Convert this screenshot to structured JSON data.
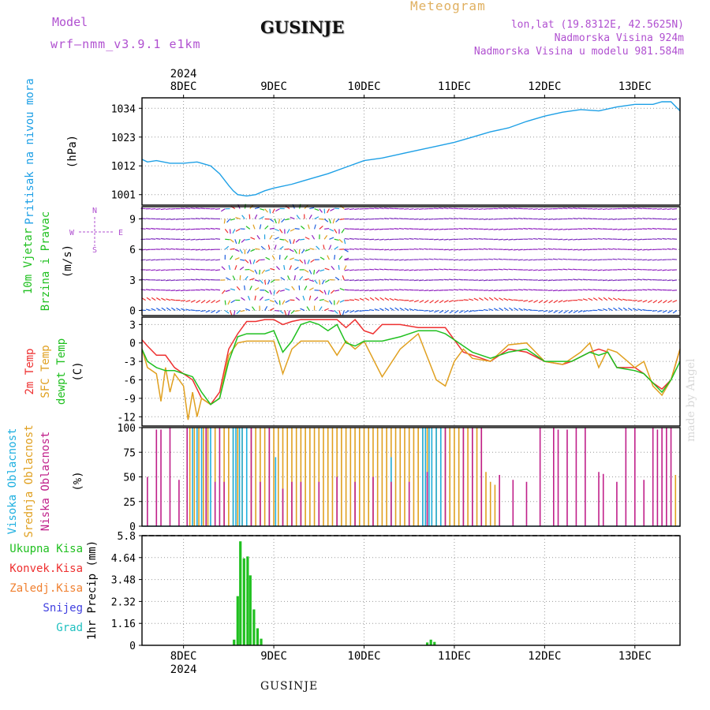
{
  "header": {
    "model_label": "Model",
    "model_name": "wrf—nmm_v3.9.1 e1km",
    "title": "GUSINJE",
    "meteogram": "Meteogram",
    "lonlat": "lon,lat (19.8312E, 42.5625N)",
    "elevation": "Nadmorska Visina 924m",
    "model_elevation": "Nadmorska Visina u modelu 981.584m"
  },
  "footer": {
    "location": "GUSINJE",
    "watermark": "made by Angel"
  },
  "colors": {
    "pressure": "#1ea0e6",
    "temp2m": "#ee3030",
    "sfc": "#e0a020",
    "dewpt": "#20c020",
    "high_cloud": "#20b0e0",
    "mid_cloud": "#e0a020",
    "low_cloud": "#c0208a",
    "total_precip": "#20c020",
    "conv_precip": "#ee3030",
    "freezing": "#f08030",
    "snow": "#4040e0",
    "hail": "#20c0c0"
  },
  "chart_data": [
    {
      "type": "line",
      "panel": "pressure",
      "ylabel_lines": [
        "Pritisak na nivou mora",
        "(hPa)"
      ],
      "yticks": [
        1001,
        1012,
        1023,
        1034
      ],
      "ylim": [
        997,
        1038
      ],
      "xlim": [
        7.54,
        13.5
      ],
      "day_ticks": [
        "8DEC",
        "9DEC",
        "10DEC",
        "11DEC",
        "12DEC",
        "13DEC"
      ],
      "day_tick_x": [
        8,
        9,
        10,
        11,
        12,
        13
      ],
      "year_label": "2024",
      "series": [
        {
          "x": [
            7.54,
            7.6,
            7.7,
            7.85,
            8.0,
            8.15,
            8.3,
            8.4,
            8.5,
            8.55,
            8.6,
            8.7,
            8.8,
            8.9,
            9.0,
            9.2,
            9.4,
            9.6,
            9.8,
            10.0,
            10.2,
            10.4,
            10.6,
            10.8,
            11.0,
            11.2,
            11.4,
            11.6,
            11.8,
            12.0,
            12.2,
            12.4,
            12.6,
            12.8,
            13.0,
            13.2,
            13.3,
            13.4,
            13.5
          ],
          "y": [
            1014.5,
            1013.5,
            1014,
            1013,
            1013,
            1013.5,
            1012,
            1009,
            1004.5,
            1002.5,
            1001,
            1000.5,
            1001,
            1002.5,
            1003.5,
            1005,
            1007,
            1009,
            1011.5,
            1014,
            1015,
            1016.5,
            1018,
            1019.5,
            1021,
            1023,
            1025,
            1026.5,
            1029,
            1031,
            1032.5,
            1033.5,
            1033,
            1034.5,
            1035.5,
            1035.5,
            1036.5,
            1036.5,
            1033
          ]
        }
      ]
    },
    {
      "type": "scatter",
      "panel": "wind",
      "ylabel_lines": [
        "10m Vjetar",
        "Brzina i Pravac",
        "(m/s)"
      ],
      "compass": {
        "n": "N",
        "s": "S",
        "w": "W",
        "e": "E"
      },
      "yticks": [
        0,
        3,
        6,
        9
      ],
      "ylim": [
        -0.5,
        10.2
      ],
      "note": "wind barbs at 0-10 m/s levels; strong mixed directions 8.5-9.8 DEC"
    },
    {
      "type": "line",
      "panel": "temperature",
      "ylabel_lines": [
        "2m Temp",
        "SFC Temp",
        "dewpt Temp",
        "(C)"
      ],
      "yticks": [
        3,
        0,
        -3,
        -6,
        -9,
        -12
      ],
      "ylim": [
        -13.5,
        4.2
      ],
      "series": [
        {
          "name": "2m Temp",
          "x": [
            7.54,
            7.6,
            7.7,
            7.8,
            7.9,
            8.0,
            8.1,
            8.2,
            8.3,
            8.4,
            8.5,
            8.6,
            8.7,
            8.8,
            8.9,
            9.0,
            9.1,
            9.2,
            9.3,
            9.4,
            9.5,
            9.6,
            9.7,
            9.8,
            9.9,
            10.0,
            10.1,
            10.2,
            10.4,
            10.6,
            10.8,
            10.9,
            11.0,
            11.1,
            11.2,
            11.4,
            11.6,
            11.8,
            12.0,
            12.2,
            12.3,
            12.5,
            12.6,
            12.7,
            12.8,
            13.0,
            13.1,
            13.2,
            13.3,
            13.4,
            13.5
          ],
          "y": [
            0.5,
            -0.5,
            -2,
            -2,
            -4,
            -5,
            -6,
            -9,
            -10,
            -8,
            -1,
            1.5,
            3.5,
            3.5,
            3.8,
            3.8,
            3,
            3.5,
            3.8,
            3.8,
            3.8,
            3.8,
            3.8,
            2.5,
            3.8,
            2,
            1.5,
            3,
            3,
            2.5,
            2.5,
            2.5,
            0.5,
            -1.5,
            -2,
            -3,
            -1,
            -1.5,
            -3,
            -3.5,
            -3,
            -1.5,
            -1,
            -1.5,
            -4,
            -4,
            -5,
            -6.5,
            -7.5,
            -6,
            -1
          ]
        },
        {
          "name": "SFC Temp",
          "x": [
            7.54,
            7.6,
            7.7,
            7.75,
            7.8,
            7.85,
            7.9,
            8.0,
            8.05,
            8.1,
            8.15,
            8.2,
            8.3,
            8.4,
            8.5,
            8.6,
            8.7,
            8.8,
            8.9,
            9.0,
            9.1,
            9.2,
            9.3,
            9.4,
            9.5,
            9.6,
            9.7,
            9.8,
            9.9,
            10.0,
            10.2,
            10.4,
            10.6,
            10.8,
            10.9,
            11.0,
            11.1,
            11.2,
            11.4,
            11.6,
            11.8,
            12.0,
            12.2,
            12.4,
            12.5,
            12.6,
            12.7,
            12.8,
            13.0,
            13.1,
            13.2,
            13.3,
            13.4,
            13.5
          ],
          "y": [
            -1,
            -4,
            -5,
            -9.5,
            -4,
            -8,
            -5,
            -7,
            -12.5,
            -8,
            -12,
            -9,
            -10,
            -9,
            -2,
            0,
            0.3,
            0.3,
            0.3,
            0.3,
            -5,
            -1,
            0.3,
            0.3,
            0.3,
            0.3,
            -2,
            0.3,
            -1,
            0.3,
            -5.5,
            -1,
            1.5,
            -6,
            -7,
            -3,
            -1,
            -2.5,
            -3,
            -0.3,
            0,
            -3,
            -3.5,
            -1.5,
            0,
            -4,
            -1,
            -1.5,
            -4,
            -3,
            -7,
            -8.5,
            -6,
            -1
          ]
        },
        {
          "name": "dewpt Temp",
          "x": [
            7.54,
            7.6,
            7.7,
            7.8,
            7.9,
            8.0,
            8.1,
            8.2,
            8.3,
            8.4,
            8.5,
            8.6,
            8.7,
            8.8,
            8.9,
            9.0,
            9.1,
            9.2,
            9.3,
            9.4,
            9.5,
            9.6,
            9.7,
            9.8,
            9.9,
            10.0,
            10.2,
            10.4,
            10.6,
            10.8,
            10.9,
            11.0,
            11.1,
            11.2,
            11.4,
            11.6,
            11.8,
            12.0,
            12.2,
            12.3,
            12.5,
            12.6,
            12.7,
            12.8,
            13.0,
            13.1,
            13.2,
            13.3,
            13.4,
            13.5
          ],
          "y": [
            -1,
            -3,
            -4,
            -4.5,
            -4.5,
            -5,
            -5.5,
            -8,
            -10,
            -9,
            -3,
            1,
            1.5,
            1.5,
            1.5,
            2,
            -1.5,
            0.3,
            3,
            3.5,
            3,
            2,
            3,
            0,
            -0.5,
            0.3,
            0.3,
            1,
            2,
            2,
            1.5,
            0.5,
            -0.5,
            -1.5,
            -2.5,
            -1.5,
            -1,
            -3,
            -3,
            -3,
            -1.5,
            -2,
            -1.5,
            -4,
            -4.5,
            -5,
            -6.5,
            -8,
            -6,
            -3
          ]
        }
      ]
    },
    {
      "type": "bar",
      "panel": "clouds",
      "ylabel_lines": [
        "Visoka Oblacnost",
        "Srednja Oblacnost",
        "Niska Oblacnost",
        "(%)"
      ],
      "yticks": [
        0,
        25,
        50,
        75,
        100
      ],
      "ylim": [
        0,
        100
      ],
      "series": [
        {
          "name": "Visoka Oblacnost",
          "x": [
            8.1,
            8.15,
            8.2,
            8.25,
            8.3,
            8.55,
            8.58,
            8.62,
            8.65,
            8.7,
            9.02,
            10.3,
            10.65,
            10.68,
            10.72,
            10.75,
            10.8,
            10.85
          ],
          "values": [
            100,
            100,
            100,
            100,
            100,
            100,
            100,
            100,
            100,
            100,
            70,
            70,
            100,
            100,
            100,
            100,
            100,
            100
          ]
        },
        {
          "name": "Srednja Oblacnost",
          "x": [
            8.07,
            8.12,
            8.17,
            8.22,
            8.27,
            8.35,
            8.45,
            8.5,
            8.55,
            8.6,
            8.65,
            8.75,
            8.8,
            8.85,
            8.9,
            8.95,
            9.0,
            9.05,
            9.1,
            9.15,
            9.2,
            9.25,
            9.3,
            9.35,
            9.4,
            9.45,
            9.5,
            9.55,
            9.6,
            9.65,
            9.7,
            9.75,
            9.8,
            9.85,
            9.9,
            9.95,
            10.0,
            10.05,
            10.1,
            10.15,
            10.2,
            10.25,
            10.3,
            10.35,
            10.4,
            10.45,
            10.5,
            10.55,
            10.6,
            10.65,
            10.7,
            10.75,
            10.8,
            10.85,
            10.9,
            10.95,
            11.0,
            11.05,
            11.1,
            11.15,
            11.2,
            11.25,
            11.3,
            11.35,
            11.4,
            11.45,
            13.45
          ],
          "values": [
            100,
            100,
            100,
            100,
            100,
            100,
            100,
            100,
            100,
            100,
            100,
            100,
            100,
            100,
            100,
            100,
            100,
            100,
            100,
            100,
            100,
            100,
            100,
            100,
            100,
            100,
            100,
            100,
            100,
            100,
            100,
            100,
            100,
            100,
            100,
            100,
            100,
            100,
            100,
            100,
            100,
            100,
            100,
            100,
            100,
            100,
            100,
            100,
            100,
            100,
            100,
            100,
            100,
            100,
            100,
            100,
            100,
            100,
            100,
            100,
            100,
            100,
            100,
            55,
            45,
            42,
            52
          ]
        },
        {
          "name": "Niska Oblacnost",
          "x": [
            7.6,
            7.7,
            7.75,
            7.85,
            7.95,
            8.04,
            8.25,
            8.35,
            8.4,
            8.45,
            8.75,
            8.85,
            8.95,
            9.1,
            9.2,
            9.3,
            9.5,
            9.7,
            9.9,
            10.1,
            10.3,
            10.5,
            10.7,
            10.9,
            11.1,
            11.2,
            11.3,
            11.5,
            11.65,
            11.8,
            11.95,
            12.1,
            12.15,
            12.25,
            12.35,
            12.45,
            12.6,
            12.65,
            12.8,
            12.9,
            13.0,
            13.1,
            13.2,
            13.25,
            13.3,
            13.35,
            13.4
          ],
          "values": [
            50,
            98,
            98,
            100,
            47,
            100,
            100,
            45,
            100,
            45,
            100,
            45,
            100,
            38,
            45,
            45,
            45,
            50,
            45,
            50,
            45,
            45,
            55,
            100,
            100,
            100,
            100,
            52,
            47,
            45,
            100,
            100,
            98,
            98,
            100,
            100,
            55,
            53,
            45,
            100,
            100,
            47,
            100,
            98,
            100,
            100,
            100
          ]
        }
      ]
    },
    {
      "type": "bar",
      "panel": "precipitation",
      "ylabel_lines": [
        "1hr Precip (mm)"
      ],
      "legend": [
        "Ukupna Kisa",
        "Konvek.Kisa",
        "Zaledj.Kisa",
        "Snijeg",
        "Grad"
      ],
      "yticks": [
        0,
        1.16,
        2.32,
        3.48,
        4.64,
        5.8
      ],
      "ylim": [
        0,
        5.8
      ],
      "series": [
        {
          "name": "Ukupna Kisa",
          "x": [
            8.56,
            8.6,
            8.63,
            8.67,
            8.71,
            8.74,
            8.78,
            8.82,
            8.86
          ],
          "values": [
            0.3,
            2.6,
            5.5,
            4.6,
            4.7,
            3.7,
            1.9,
            0.9,
            0.35
          ]
        },
        {
          "name": "Ukupna Kisa (10DEC)",
          "x": [
            10.7,
            10.74,
            10.78
          ],
          "values": [
            0.15,
            0.3,
            0.18
          ]
        }
      ]
    }
  ]
}
